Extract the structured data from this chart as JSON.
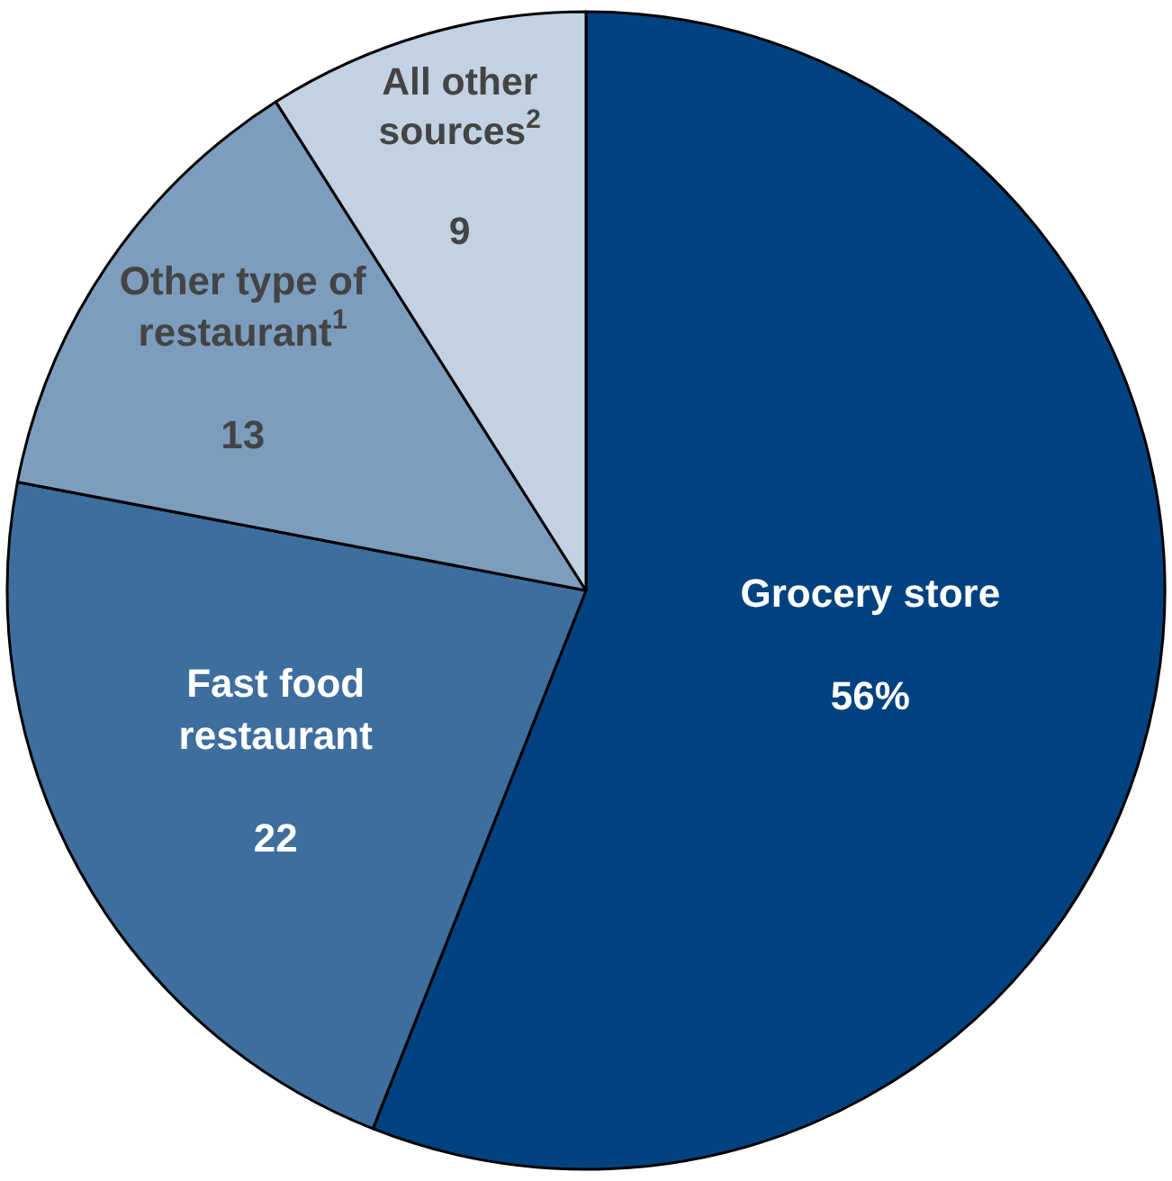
{
  "chart_data": {
    "type": "pie",
    "categories": [
      "Grocery store",
      "Fast food\nrestaurant",
      "Other type of\nrestaurant$^{1}$",
      "All other\nsources$^{2}$"
    ],
    "values": [
      56,
      22,
      13,
      9
    ],
    "value_labels": [
      "56%",
      "22",
      "13",
      "9"
    ],
    "colors": [
      "#00427f",
      "#3d6e9e",
      "#7c9dbe",
      "#c2d2e2"
    ]
  }
}
